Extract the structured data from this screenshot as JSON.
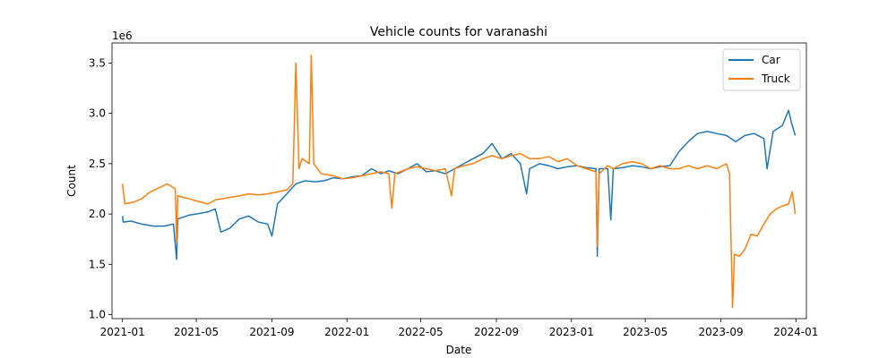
{
  "chart_data": {
    "type": "line",
    "title": "Vehicle counts for varanashi",
    "xlabel": "Date",
    "ylabel": "Count",
    "y_offset_label": "1e6",
    "ylim": [
      0.96,
      3.7
    ],
    "xlim": [
      "2020-12-15",
      "2024-01-18"
    ],
    "xticks": [
      "2021-01",
      "2021-05",
      "2021-09",
      "2022-01",
      "2022-05",
      "2022-09",
      "2023-01",
      "2023-05",
      "2023-09",
      "2024-01"
    ],
    "yticks": [
      1.0,
      1.5,
      2.0,
      2.5,
      3.0,
      3.5
    ],
    "yticklabels": [
      "1.0",
      "1.5",
      "2.0",
      "2.5",
      "3.0",
      "3.5"
    ],
    "grid": false,
    "legend_position": "top-right",
    "series": [
      {
        "name": "Car",
        "color": "#1f77b4",
        "points": [
          [
            "2021-01-01",
            1.98
          ],
          [
            "2021-01-02",
            1.92
          ],
          [
            "2021-01-15",
            1.93
          ],
          [
            "2021-02-01",
            1.9
          ],
          [
            "2021-02-20",
            1.88
          ],
          [
            "2021-03-10",
            1.88
          ],
          [
            "2021-03-25",
            1.9
          ],
          [
            "2021-03-30",
            1.55
          ],
          [
            "2021-04-01",
            1.95
          ],
          [
            "2021-04-20",
            1.99
          ],
          [
            "2021-05-01",
            2.0
          ],
          [
            "2021-05-20",
            2.02
          ],
          [
            "2021-06-01",
            2.05
          ],
          [
            "2021-06-10",
            1.82
          ],
          [
            "2021-06-25",
            1.86
          ],
          [
            "2021-07-10",
            1.95
          ],
          [
            "2021-07-25",
            1.98
          ],
          [
            "2021-08-10",
            1.92
          ],
          [
            "2021-08-25",
            1.9
          ],
          [
            "2021-09-01",
            1.78
          ],
          [
            "2021-09-10",
            2.1
          ],
          [
            "2021-09-25",
            2.2
          ],
          [
            "2021-10-10",
            2.3
          ],
          [
            "2021-10-25",
            2.33
          ],
          [
            "2021-11-10",
            2.32
          ],
          [
            "2021-11-25",
            2.33
          ],
          [
            "2021-12-10",
            2.36
          ],
          [
            "2021-12-25",
            2.35
          ],
          [
            "2022-01-10",
            2.37
          ],
          [
            "2022-01-25",
            2.38
          ],
          [
            "2022-02-10",
            2.45
          ],
          [
            "2022-02-25",
            2.4
          ],
          [
            "2022-03-10",
            2.43
          ],
          [
            "2022-03-25",
            2.4
          ],
          [
            "2022-04-10",
            2.45
          ],
          [
            "2022-04-25",
            2.5
          ],
          [
            "2022-05-10",
            2.42
          ],
          [
            "2022-05-25",
            2.43
          ],
          [
            "2022-06-10",
            2.4
          ],
          [
            "2022-06-25",
            2.45
          ],
          [
            "2022-07-10",
            2.5
          ],
          [
            "2022-07-25",
            2.55
          ],
          [
            "2022-08-10",
            2.6
          ],
          [
            "2022-08-25",
            2.7
          ],
          [
            "2022-09-10",
            2.55
          ],
          [
            "2022-09-25",
            2.6
          ],
          [
            "2022-10-10",
            2.5
          ],
          [
            "2022-10-20",
            2.2
          ],
          [
            "2022-10-25",
            2.45
          ],
          [
            "2022-11-10",
            2.5
          ],
          [
            "2022-11-25",
            2.48
          ],
          [
            "2022-12-10",
            2.45
          ],
          [
            "2022-12-25",
            2.47
          ],
          [
            "2023-01-10",
            2.48
          ],
          [
            "2023-01-25",
            2.46
          ],
          [
            "2023-02-10",
            2.45
          ],
          [
            "2023-02-12",
            1.58
          ],
          [
            "2023-02-15",
            2.45
          ],
          [
            "2023-03-01",
            2.45
          ],
          [
            "2023-03-06",
            1.94
          ],
          [
            "2023-03-10",
            2.45
          ],
          [
            "2023-03-25",
            2.46
          ],
          [
            "2023-04-10",
            2.48
          ],
          [
            "2023-04-25",
            2.47
          ],
          [
            "2023-05-10",
            2.45
          ],
          [
            "2023-05-25",
            2.47
          ],
          [
            "2023-06-10",
            2.48
          ],
          [
            "2023-06-25",
            2.62
          ],
          [
            "2023-07-10",
            2.72
          ],
          [
            "2023-07-25",
            2.8
          ],
          [
            "2023-08-10",
            2.82
          ],
          [
            "2023-08-25",
            2.8
          ],
          [
            "2023-09-10",
            2.78
          ],
          [
            "2023-09-25",
            2.72
          ],
          [
            "2023-10-10",
            2.78
          ],
          [
            "2023-10-25",
            2.8
          ],
          [
            "2023-11-10",
            2.75
          ],
          [
            "2023-11-15",
            2.45
          ],
          [
            "2023-11-25",
            2.82
          ],
          [
            "2023-12-10",
            2.88
          ],
          [
            "2023-12-20",
            3.03
          ],
          [
            "2023-12-25",
            2.9
          ],
          [
            "2023-12-31",
            2.78
          ]
        ]
      },
      {
        "name": "Truck",
        "color": "#ff7f0e",
        "points": [
          [
            "2021-01-01",
            2.3
          ],
          [
            "2021-01-05",
            2.1
          ],
          [
            "2021-01-20",
            2.12
          ],
          [
            "2021-02-01",
            2.15
          ],
          [
            "2021-02-15",
            2.22
          ],
          [
            "2021-03-01",
            2.26
          ],
          [
            "2021-03-15",
            2.3
          ],
          [
            "2021-03-28",
            2.25
          ],
          [
            "2021-03-30",
            1.72
          ],
          [
            "2021-04-01",
            2.18
          ],
          [
            "2021-04-20",
            2.15
          ],
          [
            "2021-05-01",
            2.13
          ],
          [
            "2021-05-20",
            2.1
          ],
          [
            "2021-06-01",
            2.14
          ],
          [
            "2021-06-20",
            2.16
          ],
          [
            "2021-07-10",
            2.18
          ],
          [
            "2021-07-25",
            2.2
          ],
          [
            "2021-08-10",
            2.19
          ],
          [
            "2021-08-25",
            2.2
          ],
          [
            "2021-09-10",
            2.22
          ],
          [
            "2021-09-25",
            2.24
          ],
          [
            "2021-10-05",
            2.3
          ],
          [
            "2021-10-10",
            3.5
          ],
          [
            "2021-10-15",
            2.45
          ],
          [
            "2021-10-20",
            2.55
          ],
          [
            "2021-11-01",
            2.5
          ],
          [
            "2021-11-04",
            3.58
          ],
          [
            "2021-11-08",
            2.5
          ],
          [
            "2021-11-20",
            2.4
          ],
          [
            "2021-12-10",
            2.38
          ],
          [
            "2021-12-25",
            2.35
          ],
          [
            "2022-01-10",
            2.36
          ],
          [
            "2022-01-25",
            2.38
          ],
          [
            "2022-02-10",
            2.4
          ],
          [
            "2022-02-25",
            2.42
          ],
          [
            "2022-03-10",
            2.4
          ],
          [
            "2022-03-15",
            2.06
          ],
          [
            "2022-03-20",
            2.4
          ],
          [
            "2022-04-10",
            2.45
          ],
          [
            "2022-04-25",
            2.47
          ],
          [
            "2022-05-10",
            2.45
          ],
          [
            "2022-05-25",
            2.43
          ],
          [
            "2022-06-10",
            2.45
          ],
          [
            "2022-06-20",
            2.18
          ],
          [
            "2022-06-25",
            2.45
          ],
          [
            "2022-07-10",
            2.48
          ],
          [
            "2022-07-25",
            2.5
          ],
          [
            "2022-08-10",
            2.55
          ],
          [
            "2022-08-25",
            2.58
          ],
          [
            "2022-09-10",
            2.55
          ],
          [
            "2022-09-25",
            2.58
          ],
          [
            "2022-10-10",
            2.6
          ],
          [
            "2022-10-25",
            2.55
          ],
          [
            "2022-11-10",
            2.55
          ],
          [
            "2022-11-25",
            2.57
          ],
          [
            "2022-12-10",
            2.52
          ],
          [
            "2022-12-25",
            2.55
          ],
          [
            "2023-01-10",
            2.48
          ],
          [
            "2023-01-25",
            2.45
          ],
          [
            "2023-02-10",
            2.42
          ],
          [
            "2023-02-12",
            1.68
          ],
          [
            "2023-02-15",
            2.4
          ],
          [
            "2023-03-01",
            2.48
          ],
          [
            "2023-03-10",
            2.45
          ],
          [
            "2023-03-25",
            2.5
          ],
          [
            "2023-04-10",
            2.52
          ],
          [
            "2023-04-25",
            2.5
          ],
          [
            "2023-05-10",
            2.45
          ],
          [
            "2023-05-25",
            2.48
          ],
          [
            "2023-06-10",
            2.45
          ],
          [
            "2023-06-25",
            2.45
          ],
          [
            "2023-07-10",
            2.48
          ],
          [
            "2023-07-25",
            2.45
          ],
          [
            "2023-08-10",
            2.48
          ],
          [
            "2023-08-25",
            2.45
          ],
          [
            "2023-09-10",
            2.5
          ],
          [
            "2023-09-15",
            2.4
          ],
          [
            "2023-09-20",
            1.07
          ],
          [
            "2023-09-23",
            1.6
          ],
          [
            "2023-10-01",
            1.58
          ],
          [
            "2023-10-10",
            1.65
          ],
          [
            "2023-10-20",
            1.8
          ],
          [
            "2023-10-30",
            1.78
          ],
          [
            "2023-11-10",
            1.9
          ],
          [
            "2023-11-20",
            2.0
          ],
          [
            "2023-11-30",
            2.05
          ],
          [
            "2023-12-10",
            2.08
          ],
          [
            "2023-12-20",
            2.1
          ],
          [
            "2023-12-26",
            2.22
          ],
          [
            "2023-12-31",
            2.0
          ]
        ]
      }
    ]
  }
}
